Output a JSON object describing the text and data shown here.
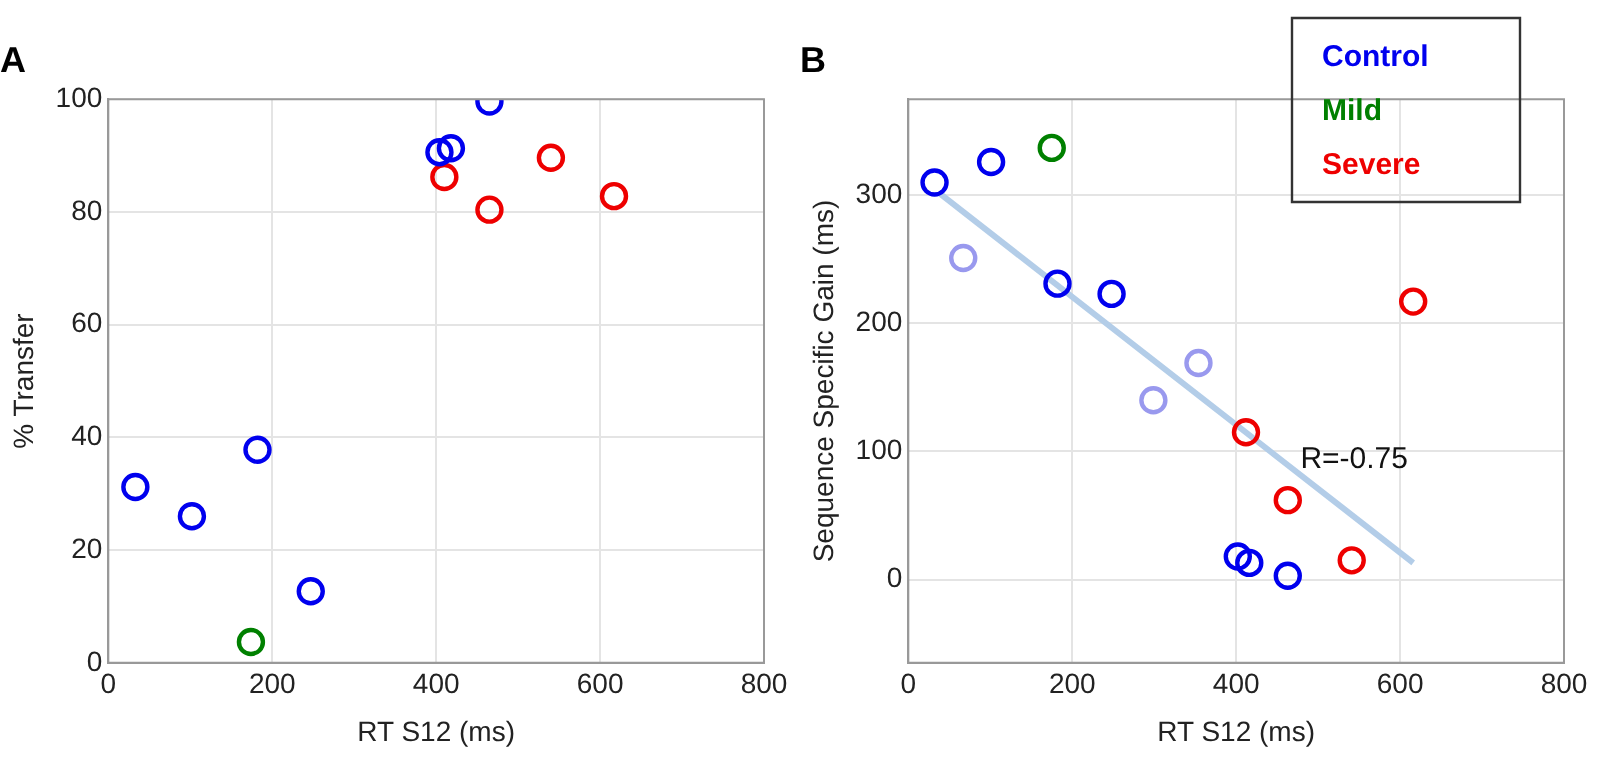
{
  "chart_data": [
    {
      "type": "scatter",
      "title": "A",
      "xlabel": "RT S12 (ms)",
      "ylabel": "% Transfer",
      "xlim": [
        0,
        800
      ],
      "ylim": [
        0,
        100
      ],
      "xticks": [
        0,
        200,
        400,
        600,
        800
      ],
      "yticks": [
        0,
        20,
        40,
        60,
        80,
        100
      ],
      "grid": true,
      "legend": false,
      "marker": "circle",
      "series": [
        {
          "color": "#0000ee",
          "x": [
            33,
            102,
            182,
            247,
            404,
            418,
            465
          ],
          "values": [
            31.2,
            26,
            37.8,
            12.7,
            90.6,
            91.3,
            99.6
          ]
        },
        {
          "color": "#008000",
          "x": [
            174
          ],
          "values": [
            3.7
          ]
        },
        {
          "color": "#ee0000",
          "x": [
            410,
            465,
            540,
            617
          ],
          "values": [
            86.2,
            80.4,
            89.6,
            82.8
          ]
        }
      ]
    },
    {
      "type": "scatter",
      "title": "B",
      "xlabel": "RT S12 (ms)",
      "ylabel": "Sequence Specific Gain (ms)",
      "xlim": [
        0,
        800
      ],
      "ylim": [
        -65,
        375
      ],
      "xticks": [
        0,
        200,
        400,
        600,
        800
      ],
      "yticks": [
        0,
        100,
        200,
        300
      ],
      "grid": true,
      "legend": "top right",
      "marker": "circle",
      "annotations": [
        "R=-0.75"
      ],
      "series": [
        {
          "type": "line",
          "marker": "none",
          "color": "#b3cde8",
          "x": [
            37,
            616
          ],
          "values": [
            302,
            13
          ]
        },
        {
          "name": "Control",
          "color": "#0000ee",
          "x": [
            32,
            101,
            182,
            248,
            402,
            416,
            463
          ],
          "values": [
            310,
            326,
            231,
            223,
            18,
            13,
            3
          ]
        },
        {
          "color": "#9999ee",
          "x": [
            67,
            299,
            354
          ],
          "values": [
            251,
            140,
            169
          ]
        },
        {
          "name": "Mild",
          "color": "#008000",
          "x": [
            175
          ],
          "values": [
            337
          ]
        },
        {
          "name": "Severe",
          "color": "#ee0000",
          "x": [
            412,
            463,
            541,
            616
          ],
          "values": [
            115,
            62,
            15,
            217
          ]
        }
      ]
    }
  ]
}
